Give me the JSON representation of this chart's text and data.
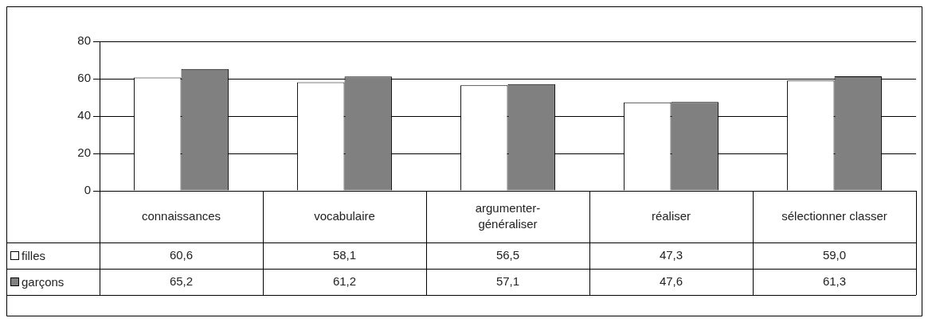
{
  "chart_data": {
    "type": "bar",
    "categories": [
      "connaissances",
      "vocabulaire",
      "argumenter-généraliser",
      "réaliser",
      "sélectionner classer"
    ],
    "series": [
      {
        "name": "filles",
        "color": "#ffffff",
        "values": [
          60.6,
          58.1,
          56.5,
          47.3,
          59.0
        ],
        "value_labels": [
          "60,6",
          "58,1",
          "56,5",
          "47,3",
          "59,0"
        ]
      },
      {
        "name": "garçons",
        "color": "#808080",
        "values": [
          65.2,
          61.2,
          57.1,
          47.6,
          61.3
        ],
        "value_labels": [
          "65,2",
          "61,2",
          "57,1",
          "47,6",
          "61,3"
        ]
      }
    ],
    "ylim": [
      0,
      80
    ],
    "yticks": [
      0,
      20,
      40,
      60,
      80
    ],
    "grid": "y",
    "legend": "bottom left"
  }
}
